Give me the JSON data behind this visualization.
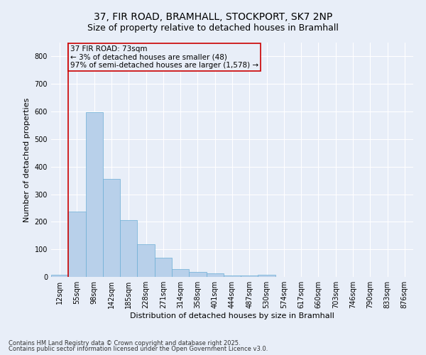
{
  "title_line1": "37, FIR ROAD, BRAMHALL, STOCKPORT, SK7 2NP",
  "title_line2": "Size of property relative to detached houses in Bramhall",
  "xlabel": "Distribution of detached houses by size in Bramhall",
  "ylabel": "Number of detached properties",
  "categories": [
    "12sqm",
    "55sqm",
    "98sqm",
    "142sqm",
    "185sqm",
    "228sqm",
    "271sqm",
    "314sqm",
    "358sqm",
    "401sqm",
    "444sqm",
    "487sqm",
    "530sqm",
    "574sqm",
    "617sqm",
    "660sqm",
    "703sqm",
    "746sqm",
    "790sqm",
    "833sqm",
    "876sqm"
  ],
  "values": [
    8,
    238,
    597,
    355,
    205,
    118,
    70,
    28,
    17,
    13,
    5,
    4,
    7,
    0,
    0,
    0,
    0,
    0,
    0,
    0,
    0
  ],
  "bar_color": "#b8d0ea",
  "bar_edge_color": "#6baed6",
  "property_line_color": "#cc0000",
  "property_line_index": 1.5,
  "annotation_text": "37 FIR ROAD: 73sqm\n← 3% of detached houses are smaller (48)\n97% of semi-detached houses are larger (1,578) →",
  "annotation_box_edge_color": "#cc0000",
  "ylim": [
    0,
    850
  ],
  "yticks": [
    0,
    100,
    200,
    300,
    400,
    500,
    600,
    700,
    800
  ],
  "footer_line1": "Contains HM Land Registry data © Crown copyright and database right 2025.",
  "footer_line2": "Contains public sector information licensed under the Open Government Licence v3.0.",
  "background_color": "#e8eef8",
  "grid_color": "#ffffff",
  "title_fontsize": 10,
  "subtitle_fontsize": 9,
  "axis_label_fontsize": 8,
  "tick_fontsize": 7,
  "annotation_fontsize": 7.5,
  "footer_fontsize": 6
}
